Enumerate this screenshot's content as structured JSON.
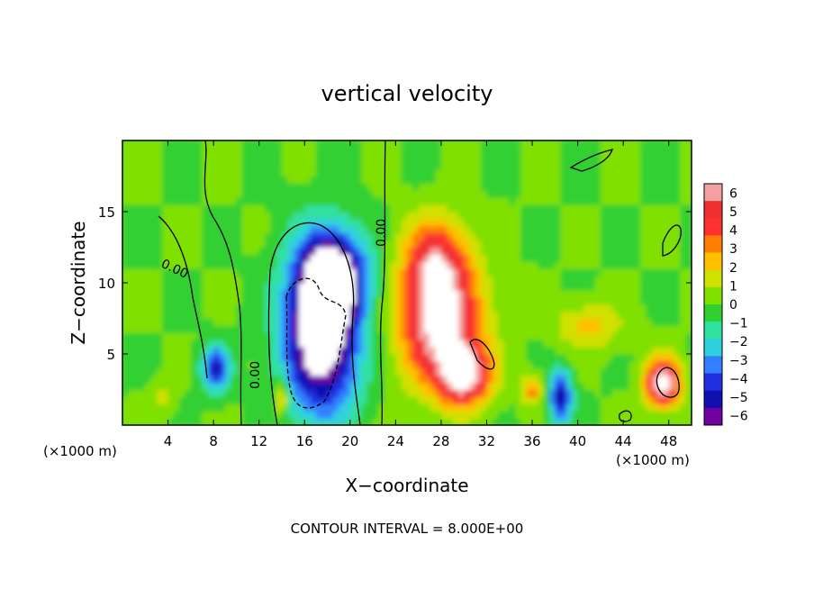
{
  "chart_data": {
    "type": "heatmap",
    "title": "vertical velocity",
    "xlabel": "X−coordinate",
    "ylabel": "Z−coordinate",
    "x_unit": "(×1000 m)",
    "x_unit_right": "(×1000 m)",
    "footer": "CONTOUR INTERVAL = 8.000E+00",
    "xlim": [
      0,
      50
    ],
    "ylim": [
      0,
      20
    ],
    "x_ticks": [
      4,
      8,
      12,
      16,
      20,
      24,
      28,
      32,
      36,
      40,
      44,
      48
    ],
    "y_ticks": [
      5,
      10,
      15
    ],
    "grid": false,
    "legend": "right",
    "colorbar": {
      "min": -6,
      "max": 6,
      "ticks": [
        "6",
        "5",
        "4",
        "3",
        "2",
        "1",
        "0",
        "−1",
        "−2",
        "−3",
        "−4",
        "−5",
        "−6"
      ],
      "colors": [
        "#f4a0a0",
        "#f03030",
        "#ff3030",
        "#ff8000",
        "#ffc000",
        "#d0e000",
        "#80e000",
        "#30d030",
        "#30e0a0",
        "#30d0e0",
        "#3080ff",
        "#2030e0",
        "#1010b0",
        "#7000a0"
      ]
    },
    "contour_labels": [
      "0.00",
      "0.00",
      "0.00"
    ],
    "features": [
      {
        "x": 17.5,
        "z": 6.5,
        "rx": 3.2,
        "rz": 5.5,
        "w": -8.0
      },
      {
        "x": 18.5,
        "z": 10.5,
        "rx": 2.8,
        "rz": 3.0,
        "w": -6.0
      },
      {
        "x": 8.2,
        "z": 4.0,
        "rx": 1.2,
        "rz": 1.6,
        "w": -4.5
      },
      {
        "x": 3.5,
        "z": 2.0,
        "rx": 1.0,
        "rz": 1.0,
        "w": 1.5
      },
      {
        "x": 28.0,
        "z": 7.0,
        "rx": 3.5,
        "rz": 4.0,
        "w": 6.5
      },
      {
        "x": 27.5,
        "z": 11.5,
        "rx": 2.8,
        "rz": 3.0,
        "w": 4.5
      },
      {
        "x": 30.0,
        "z": 3.5,
        "rx": 2.2,
        "rz": 2.0,
        "w": 6.0
      },
      {
        "x": 38.5,
        "z": 2.0,
        "rx": 1.0,
        "rz": 1.8,
        "w": -5.0
      },
      {
        "x": 47.5,
        "z": 3.0,
        "rx": 1.5,
        "rz": 1.6,
        "w": 7.0
      },
      {
        "x": 41.0,
        "z": 7.0,
        "rx": 3.0,
        "rz": 1.6,
        "w": 2.0
      },
      {
        "x": 14.0,
        "z": 2.0,
        "rx": 0.6,
        "rz": 1.2,
        "w": 3.0
      },
      {
        "x": 36.0,
        "z": 2.5,
        "rx": 0.9,
        "rz": 1.0,
        "w": 3.0
      }
    ]
  }
}
